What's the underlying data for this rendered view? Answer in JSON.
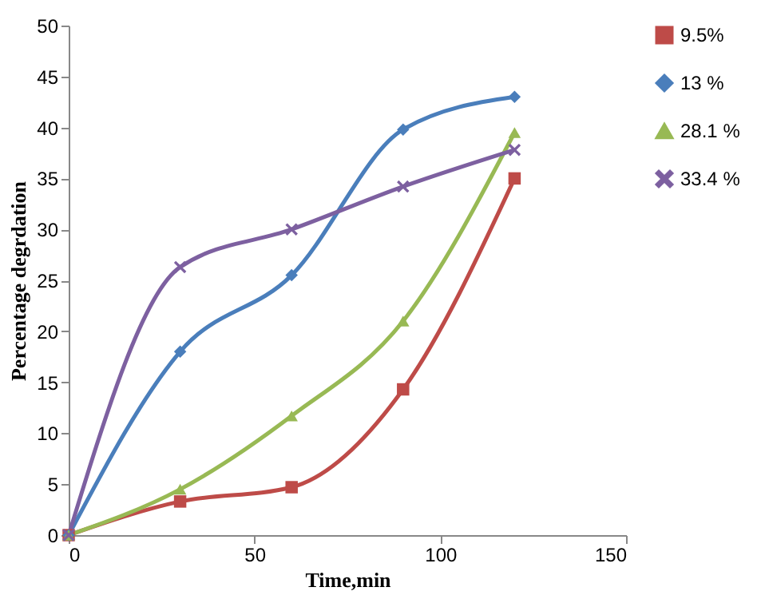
{
  "chart_data": {
    "type": "line",
    "xlabel": "Time,min",
    "ylabel": "Percentage degrdation",
    "x": [
      0,
      30,
      60,
      90,
      120
    ],
    "series": [
      {
        "name": "9.5%",
        "color": "#be4b48",
        "marker": "square",
        "values": [
          0,
          3.3,
          4.7,
          14.3,
          35
        ]
      },
      {
        "name": "13 %",
        "color": "#4a7ebb",
        "marker": "diamond",
        "values": [
          0,
          18,
          25.5,
          39.8,
          43
        ]
      },
      {
        "name": "28.1 %",
        "color": "#98b954",
        "marker": "triangle",
        "values": [
          0,
          4.5,
          11.7,
          21,
          39.5
        ]
      },
      {
        "name": "33.4 %",
        "color": "#7d60a0",
        "marker": "cross",
        "values": [
          0,
          26.3,
          30,
          34.2,
          37.8
        ]
      }
    ],
    "xlim": [
      0,
      150
    ],
    "xticks": [
      0,
      50,
      100,
      150
    ],
    "ylim": [
      0,
      50
    ],
    "yticks": [
      0,
      5,
      10,
      15,
      20,
      25,
      30,
      35,
      40,
      45,
      50
    ],
    "grid": false,
    "legend": "right",
    "line_style": "solid"
  }
}
